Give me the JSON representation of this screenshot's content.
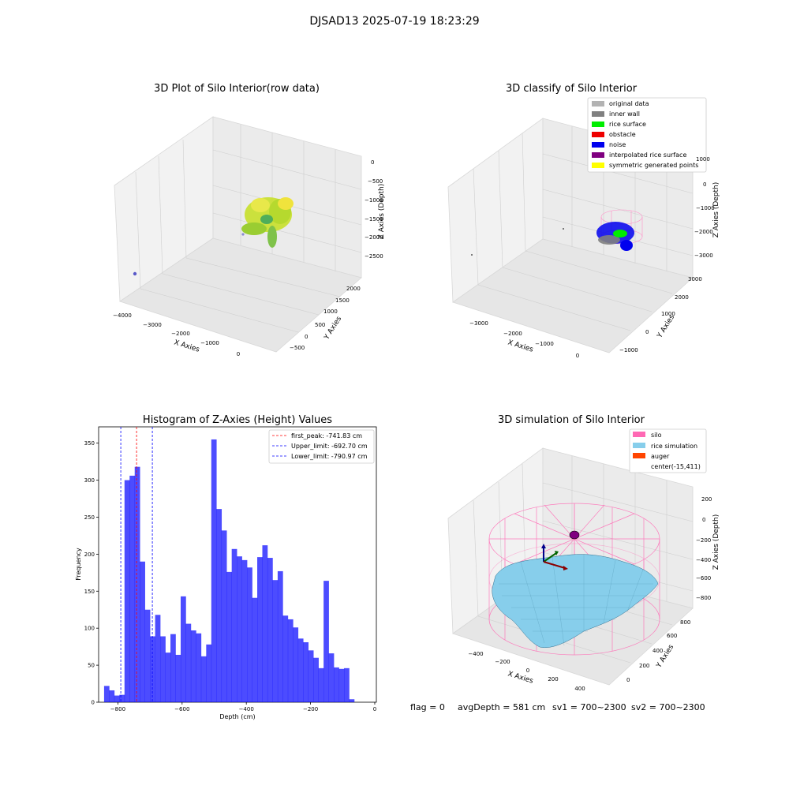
{
  "suptitle": "DJSAD13 2025-07-19 18:23:29",
  "status_line": {
    "flag": "flag = 0",
    "avg_depth": "avgDepth = 581 cm",
    "sv1": "sv1 = 700~2300",
    "sv2": "sv2 = 700~2300"
  },
  "panels": {
    "raw": {
      "title": "3D Plot of Silo Interior(row data)",
      "xlabel": "X Axies",
      "ylabel": "Y Axies",
      "zlabel": "Z Axies (Depth)",
      "xticks": [
        "−4000",
        "−3000",
        "−2000",
        "−1000",
        "0"
      ],
      "yticks": [
        "−500",
        "0",
        "500",
        "1000",
        "1500",
        "2000"
      ],
      "zticks": [
        "0",
        "−500",
        "−1000",
        "−1500",
        "−2000",
        "−2500"
      ]
    },
    "classify": {
      "title": "3D classify of Silo Interior",
      "xlabel": "X Axies",
      "ylabel": "Y Axies",
      "zlabel": "Z Axies (Depth)",
      "xticks": [
        "−3000",
        "−2000",
        "−1000",
        "0"
      ],
      "yticks": [
        "−1000",
        "0",
        "1000",
        "2000",
        "3000"
      ],
      "zticks": [
        "1000",
        "0",
        "−1000",
        "−2000",
        "−3000"
      ],
      "legend": [
        {
          "label": "original data",
          "color": "#b3b3b3"
        },
        {
          "label": "inner wall",
          "color": "#808080"
        },
        {
          "label": "rice surface",
          "color": "#00ee00"
        },
        {
          "label": "obstacle",
          "color": "#ee0000"
        },
        {
          "label": "noise",
          "color": "#0000ee"
        },
        {
          "label": "interpolated rice surface",
          "color": "#800080"
        },
        {
          "label": "symmetric generated points",
          "color": "#ffff00"
        }
      ]
    },
    "simulation": {
      "title": "3D simulation of Silo Interior",
      "xlabel": "X Axies",
      "ylabel": "Y Axies",
      "zlabel": "Z Axies (Depth)",
      "xticks": [
        "−400",
        "−200",
        "0",
        "200",
        "400"
      ],
      "yticks": [
        "0",
        "200",
        "400",
        "600",
        "800"
      ],
      "zticks": [
        "200",
        "0",
        "−200",
        "−400",
        "−600",
        "−800"
      ],
      "legend": [
        {
          "label": "silo",
          "color": "#ff69b4"
        },
        {
          "label": "rice simulation",
          "color": "#87ceeb"
        },
        {
          "label": "auger",
          "color": "#ff4500"
        },
        {
          "label": "center(-15,411)",
          "color": ""
        }
      ]
    }
  },
  "chart_data": {
    "type": "bar",
    "title": "Histogram of Z-Axies (Height) Values",
    "xlabel": "Depth (cm)",
    "ylabel": "Frequency",
    "xlim": [
      -860,
      5
    ],
    "ylim": [
      0,
      372
    ],
    "xticks": [
      -800,
      -600,
      -400,
      -200,
      0
    ],
    "xtick_labels": [
      "−800",
      "−600",
      "−400",
      "−200",
      "0"
    ],
    "yticks": [
      0,
      50,
      100,
      150,
      200,
      250,
      300,
      350
    ],
    "bar_color": "#0000ff",
    "bin_width": 15.9,
    "bin_start": -843.0,
    "values": [
      22,
      16,
      9,
      10,
      300,
      306,
      318,
      190,
      125,
      89,
      118,
      89,
      67,
      92,
      64,
      143,
      106,
      97,
      93,
      62,
      78,
      355,
      261,
      232,
      176,
      207,
      197,
      192,
      182,
      141,
      196,
      212,
      195,
      165,
      177,
      117,
      112,
      101,
      86,
      81,
      70,
      60,
      46,
      164,
      66,
      47,
      45,
      46,
      4
    ],
    "vlines": [
      {
        "label": "first_peak: -741.83 cm",
        "x": -741.83,
        "color": "#ff0000"
      },
      {
        "label": "Upper_limit: -692.70 cm",
        "x": -692.7,
        "color": "#0000ff"
      },
      {
        "label": "Lower_limit: -790.97 cm",
        "x": -790.97,
        "color": "#0000ff"
      }
    ],
    "legend_position": "top-right"
  }
}
